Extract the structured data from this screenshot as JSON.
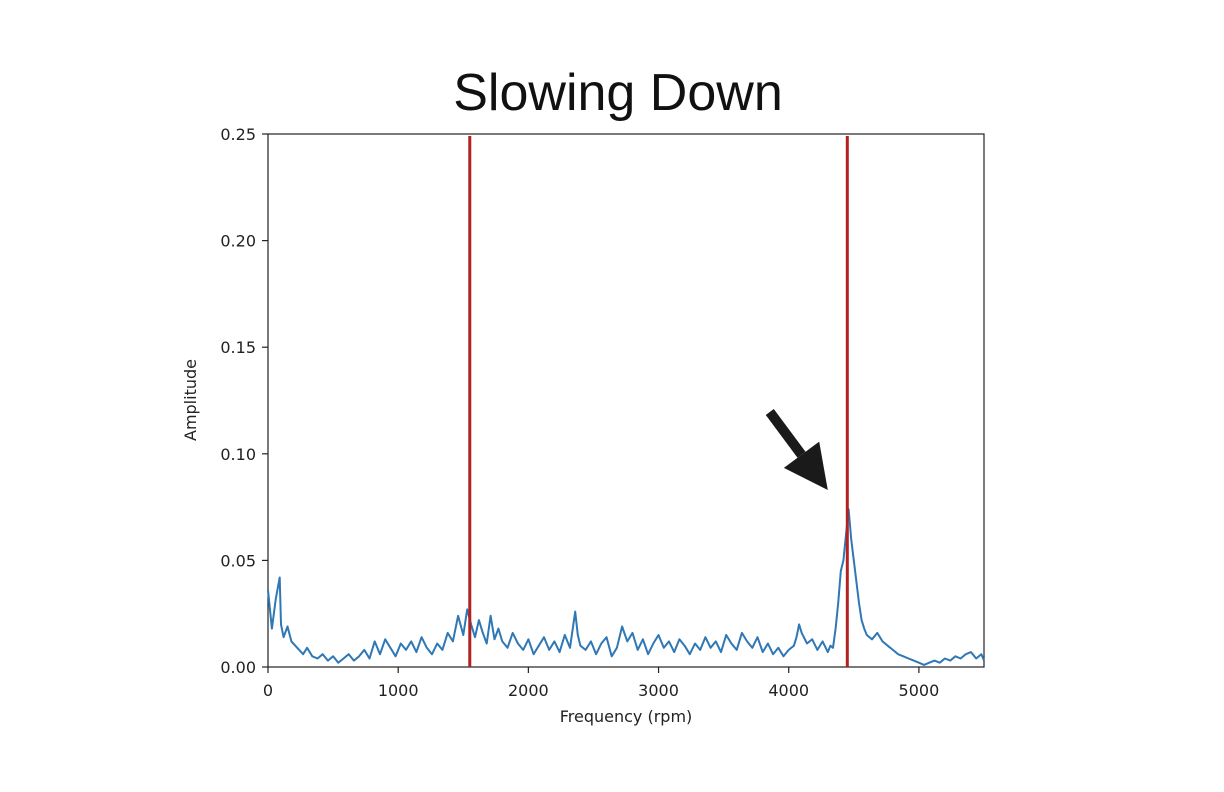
{
  "chart_data": {
    "type": "line",
    "title": "Slowing Down",
    "xlabel": "Frequency (rpm)",
    "ylabel": "Amplitude",
    "xlim": [
      0,
      5500
    ],
    "ylim": [
      0,
      0.25
    ],
    "xticks": [
      0,
      1000,
      2000,
      3000,
      4000,
      5000
    ],
    "yticks": [
      0.0,
      0.05,
      0.1,
      0.15,
      0.2,
      0.25
    ],
    "xtick_labels": [
      "0",
      "1000",
      "2000",
      "3000",
      "4000",
      "5000"
    ],
    "ytick_labels": [
      "0.00",
      "0.05",
      "0.10",
      "0.15",
      "0.20",
      "0.25"
    ],
    "grid": false,
    "series": [
      {
        "color": "#2f77b5",
        "x": [
          0,
          30,
          60,
          90,
          100,
          120,
          150,
          180,
          210,
          240,
          270,
          300,
          340,
          380,
          420,
          460,
          500,
          540,
          580,
          620,
          660,
          700,
          740,
          780,
          820,
          860,
          900,
          940,
          980,
          1020,
          1060,
          1100,
          1140,
          1180,
          1220,
          1260,
          1300,
          1340,
          1380,
          1420,
          1460,
          1500,
          1530,
          1560,
          1590,
          1620,
          1650,
          1680,
          1710,
          1740,
          1770,
          1800,
          1840,
          1880,
          1920,
          1960,
          2000,
          2040,
          2080,
          2120,
          2160,
          2200,
          2240,
          2280,
          2320,
          2360,
          2380,
          2400,
          2440,
          2480,
          2520,
          2560,
          2600,
          2640,
          2680,
          2720,
          2760,
          2800,
          2840,
          2880,
          2920,
          2960,
          3000,
          3040,
          3080,
          3120,
          3160,
          3200,
          3240,
          3280,
          3320,
          3360,
          3400,
          3440,
          3480,
          3520,
          3560,
          3600,
          3640,
          3680,
          3720,
          3760,
          3800,
          3840,
          3880,
          3920,
          3960,
          4000,
          4040,
          4060,
          4080,
          4100,
          4140,
          4180,
          4220,
          4260,
          4300,
          4320,
          4340,
          4360,
          4380,
          4400,
          4420,
          4440,
          4450,
          4460,
          4480,
          4500,
          4520,
          4540,
          4560,
          4580,
          4600,
          4640,
          4680,
          4720,
          4760,
          4800,
          4840,
          4880,
          4920,
          4960,
          5000,
          5040,
          5080,
          5120,
          5160,
          5200,
          5240,
          5280,
          5320,
          5360,
          5400,
          5440,
          5480,
          5500
        ],
        "y": [
          0.036,
          0.018,
          0.032,
          0.042,
          0.02,
          0.014,
          0.019,
          0.012,
          0.01,
          0.008,
          0.006,
          0.009,
          0.005,
          0.004,
          0.006,
          0.003,
          0.005,
          0.002,
          0.004,
          0.006,
          0.003,
          0.005,
          0.008,
          0.004,
          0.012,
          0.006,
          0.013,
          0.009,
          0.005,
          0.011,
          0.008,
          0.012,
          0.007,
          0.014,
          0.009,
          0.006,
          0.011,
          0.008,
          0.016,
          0.012,
          0.024,
          0.015,
          0.027,
          0.02,
          0.014,
          0.022,
          0.016,
          0.011,
          0.024,
          0.013,
          0.018,
          0.012,
          0.009,
          0.016,
          0.011,
          0.008,
          0.013,
          0.006,
          0.01,
          0.014,
          0.008,
          0.012,
          0.007,
          0.015,
          0.009,
          0.026,
          0.015,
          0.01,
          0.008,
          0.012,
          0.006,
          0.011,
          0.014,
          0.005,
          0.009,
          0.019,
          0.012,
          0.016,
          0.008,
          0.013,
          0.006,
          0.011,
          0.015,
          0.009,
          0.012,
          0.007,
          0.013,
          0.01,
          0.006,
          0.011,
          0.008,
          0.014,
          0.009,
          0.012,
          0.007,
          0.015,
          0.011,
          0.008,
          0.016,
          0.012,
          0.009,
          0.014,
          0.007,
          0.011,
          0.006,
          0.009,
          0.005,
          0.008,
          0.01,
          0.014,
          0.02,
          0.016,
          0.011,
          0.013,
          0.008,
          0.012,
          0.007,
          0.01,
          0.009,
          0.018,
          0.03,
          0.045,
          0.05,
          0.062,
          0.068,
          0.074,
          0.06,
          0.05,
          0.04,
          0.03,
          0.022,
          0.018,
          0.015,
          0.013,
          0.016,
          0.012,
          0.01,
          0.008,
          0.006,
          0.005,
          0.004,
          0.003,
          0.002,
          0.001,
          0.002,
          0.003,
          0.002,
          0.004,
          0.003,
          0.005,
          0.004,
          0.006,
          0.007,
          0.004,
          0.006,
          0.003
        ]
      }
    ],
    "vertical_lines": [
      {
        "x": 1550,
        "color": "#b22222"
      },
      {
        "x": 4450,
        "color": "#b22222"
      }
    ],
    "annotations": [
      {
        "type": "arrow",
        "points_to": {
          "x": 4300,
          "y": 0.083
        },
        "color": "#1a1a1a"
      }
    ]
  }
}
